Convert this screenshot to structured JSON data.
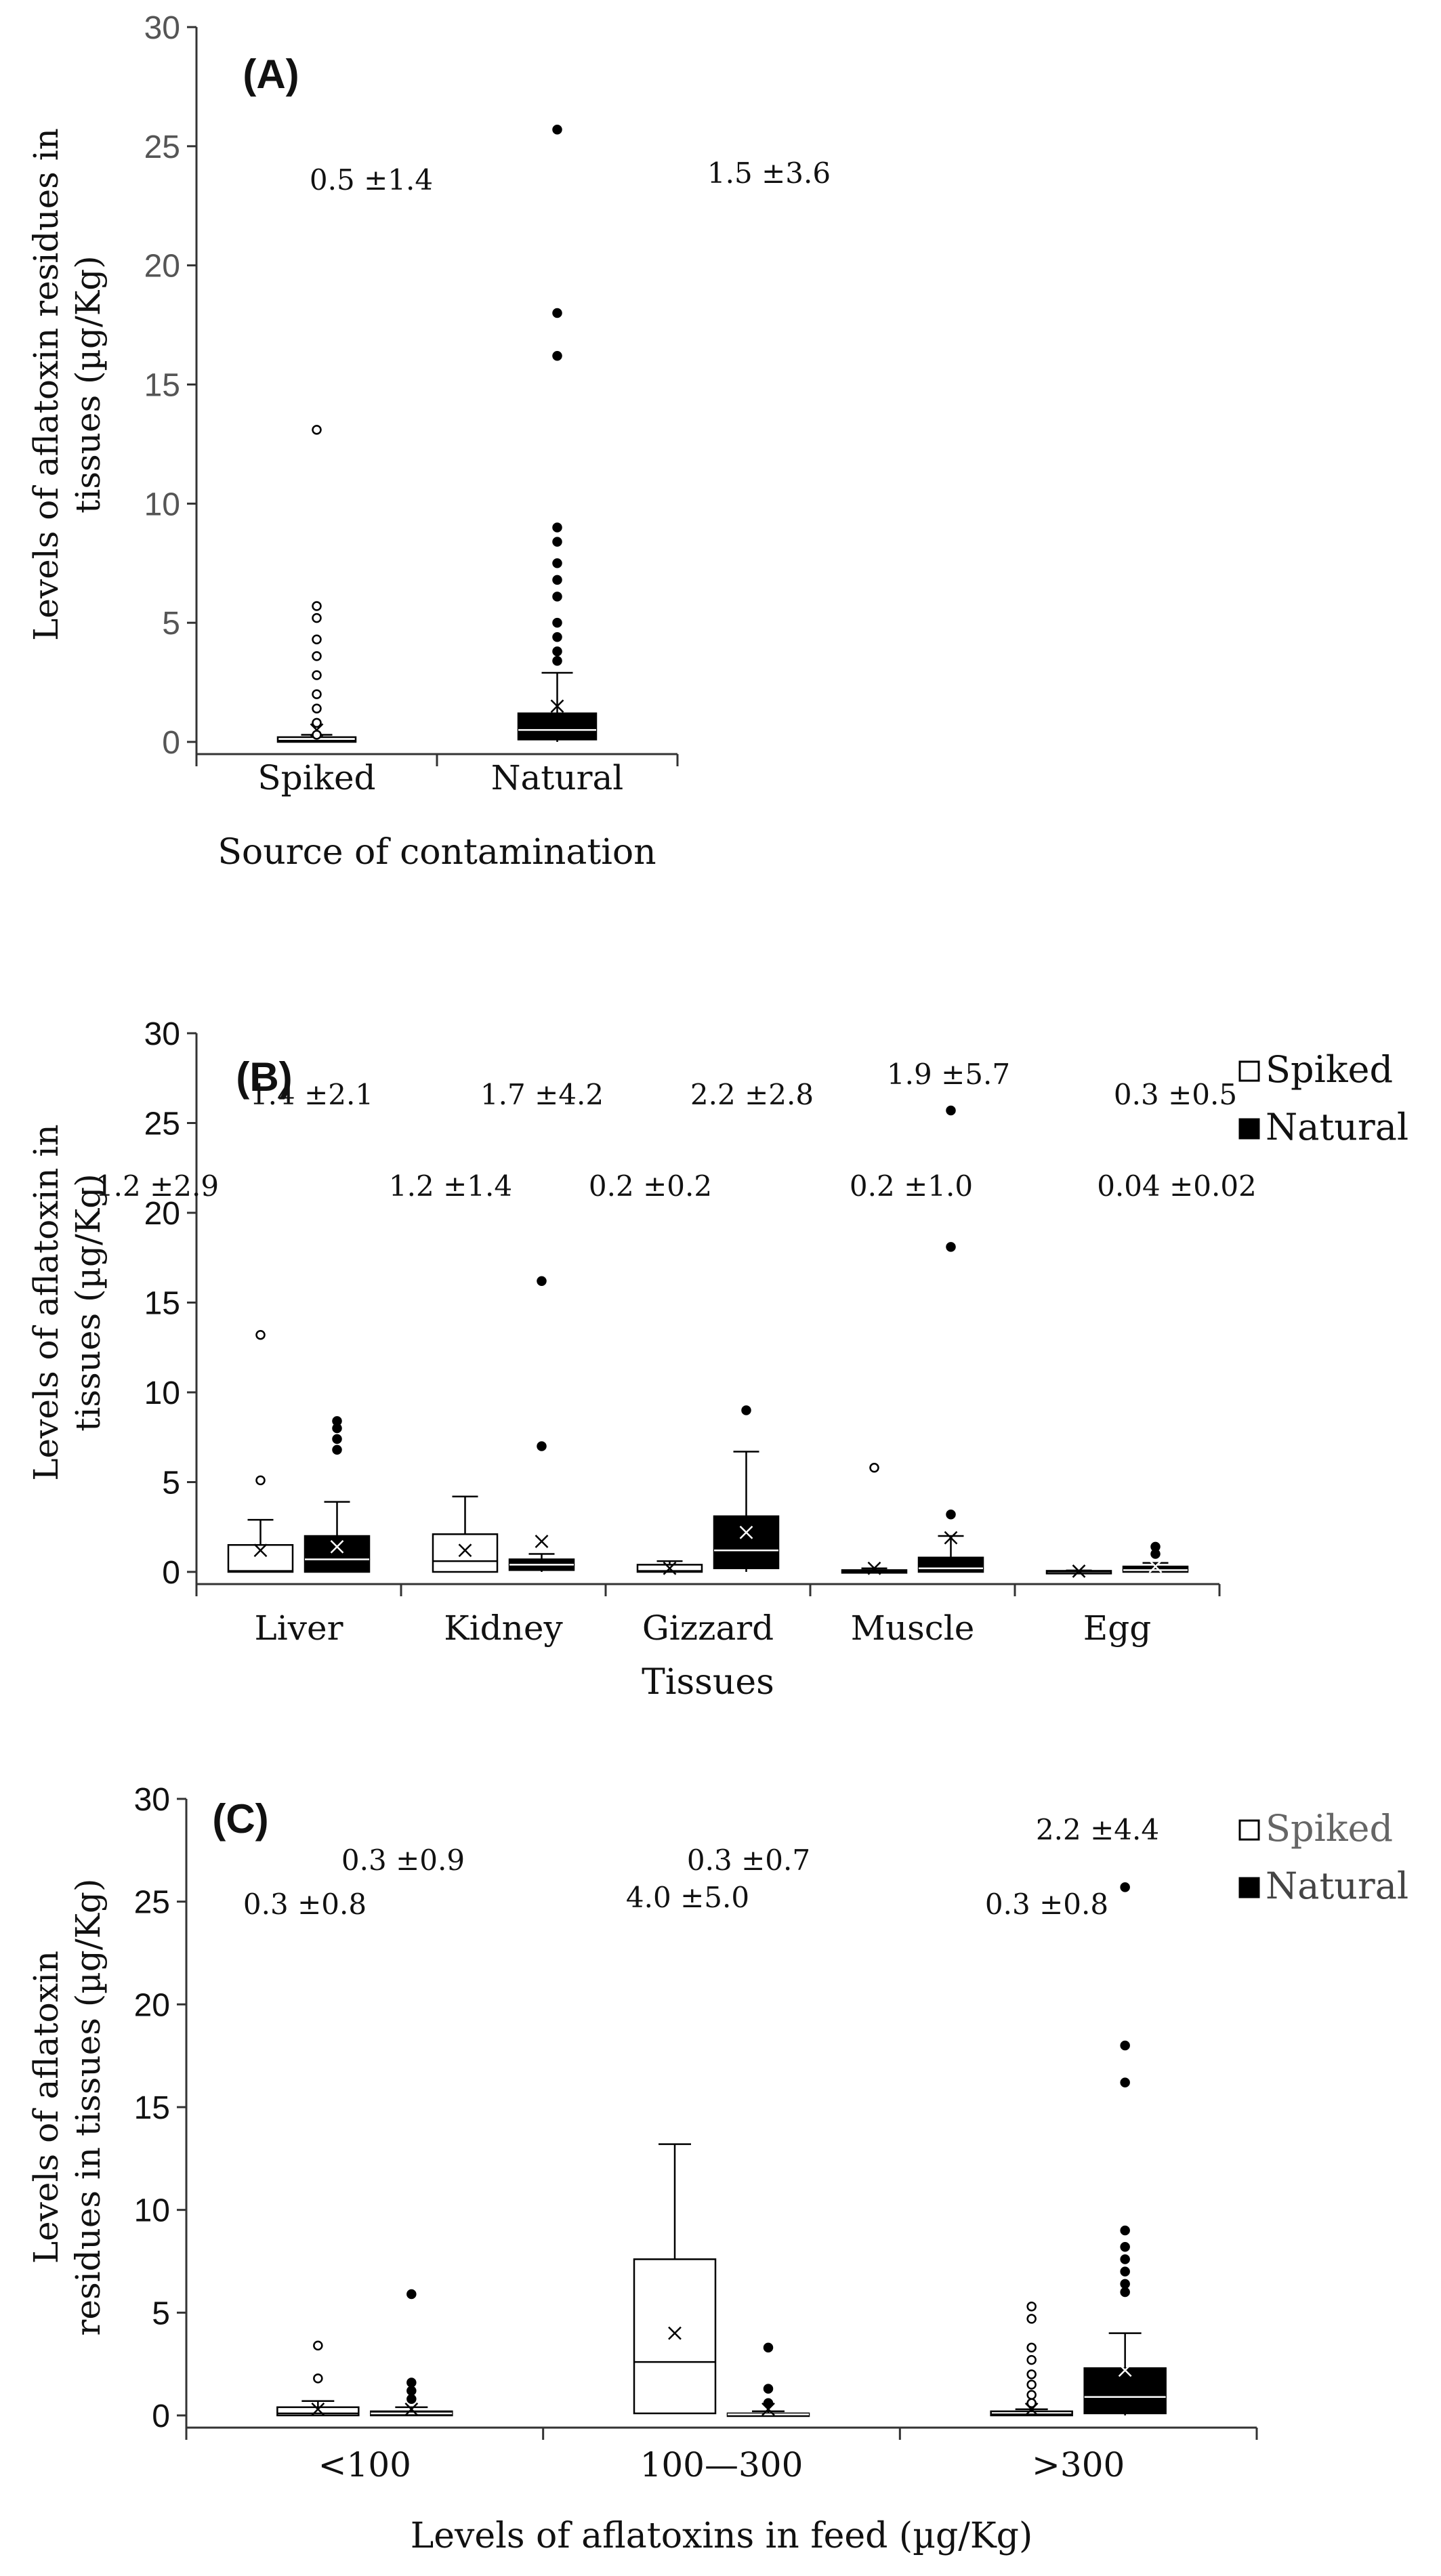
{
  "chart_data": [
    {
      "id": "A",
      "type": "box",
      "panel_label": "(A)",
      "ylabel_lines": [
        "Levels of aflatoxin residues in",
        "tissues (µg/Kg)"
      ],
      "xlabel": "Source of contamination",
      "ylim": [
        0,
        30
      ],
      "yticks": [
        0,
        5,
        10,
        15,
        20,
        25,
        30
      ],
      "categories": [
        "Spiked",
        "Natural"
      ],
      "legend": [],
      "series": [
        {
          "name": "Spiked",
          "fill": "#ffffff",
          "boxes": [
            {
              "category": "Spiked",
              "q1": 0.0,
              "median": 0.05,
              "q3": 0.2,
              "whisker_low": 0,
              "whisker_high": 0.3,
              "mean": 0.5,
              "outliers": [
                0.3,
                0.8,
                1.4,
                2.0,
                2.8,
                3.6,
                4.3,
                5.2,
                5.7,
                13.1
              ],
              "annotation": "0.5 ±1.4"
            }
          ]
        },
        {
          "name": "Natural",
          "fill": "#000000",
          "boxes": [
            {
              "category": "Natural",
              "q1": 0.1,
              "median": 0.5,
              "q3": 1.2,
              "whisker_low": 0,
              "whisker_high": 2.9,
              "mean": 1.5,
              "outliers": [
                3.4,
                3.8,
                4.4,
                5.0,
                6.1,
                6.8,
                7.5,
                8.4,
                9.0,
                16.2,
                18.0,
                25.7
              ],
              "annotation": "1.5 ±3.6"
            }
          ]
        }
      ]
    },
    {
      "id": "B",
      "type": "box",
      "panel_label": "(B)",
      "ylabel_lines": [
        "Levels of aflatoxin in",
        "tissues (µg/Kg)"
      ],
      "xlabel": "Tissues",
      "ylim": [
        0,
        30
      ],
      "yticks": [
        0,
        5,
        10,
        15,
        20,
        25,
        30
      ],
      "categories": [
        "Liver",
        "Kidney",
        "Gizzard",
        "Muscle",
        "Egg"
      ],
      "legend": [
        "Spiked",
        "Natural"
      ],
      "series": [
        {
          "name": "Spiked",
          "fill": "#ffffff",
          "boxes": [
            {
              "category": "Liver",
              "q1": 0.0,
              "median": 0.05,
              "q3": 1.5,
              "whisker_low": 0,
              "whisker_high": 2.9,
              "mean": 1.2,
              "outliers": [
                5.1,
                13.2
              ],
              "annotation": "1.2 ±2.9"
            },
            {
              "category": "Kidney",
              "q1": 0.0,
              "median": 0.6,
              "q3": 2.1,
              "whisker_low": 0,
              "whisker_high": 4.2,
              "mean": 1.2,
              "outliers": [],
              "annotation": "1.2 ±1.4"
            },
            {
              "category": "Gizzard",
              "q1": 0.0,
              "median": 0.05,
              "q3": 0.4,
              "whisker_low": 0,
              "whisker_high": 0.6,
              "mean": 0.2,
              "outliers": [],
              "annotation": "0.2 ±0.2"
            },
            {
              "category": "Muscle",
              "q1": 0.0,
              "median": 0.02,
              "q3": 0.1,
              "whisker_low": 0,
              "whisker_high": 0.2,
              "mean": 0.2,
              "outliers": [
                5.8
              ],
              "annotation": "0.2 ±1.0"
            },
            {
              "category": "Egg",
              "q1": 0.0,
              "median": 0.02,
              "q3": 0.06,
              "whisker_low": 0,
              "whisker_high": 0.08,
              "mean": 0.04,
              "outliers": [],
              "annotation": "0.04 ±0.02"
            }
          ]
        },
        {
          "name": "Natural",
          "fill": "#000000",
          "boxes": [
            {
              "category": "Liver",
              "q1": 0.0,
              "median": 0.7,
              "q3": 2.0,
              "whisker_low": 0,
              "whisker_high": 3.9,
              "mean": 1.4,
              "outliers": [
                6.8,
                7.4,
                8.0,
                8.4
              ],
              "annotation": "1.4 ±2.1"
            },
            {
              "category": "Kidney",
              "q1": 0.1,
              "median": 0.4,
              "q3": 0.7,
              "whisker_low": 0,
              "whisker_high": 1.0,
              "mean": 1.7,
              "outliers": [
                7.0,
                16.2
              ],
              "annotation": "1.7 ±4.2"
            },
            {
              "category": "Gizzard",
              "q1": 0.2,
              "median": 1.2,
              "q3": 3.1,
              "whisker_low": 0,
              "whisker_high": 6.7,
              "mean": 2.2,
              "outliers": [
                9.0
              ],
              "annotation": "2.2 ±2.8"
            },
            {
              "category": "Muscle",
              "q1": 0.0,
              "median": 0.2,
              "q3": 0.8,
              "whisker_low": 0,
              "whisker_high": 2.0,
              "mean": 1.9,
              "outliers": [
                3.2,
                18.1,
                25.7
              ],
              "annotation": "1.9 ±5.7"
            },
            {
              "category": "Egg",
              "q1": 0.0,
              "median": 0.1,
              "q3": 0.3,
              "whisker_low": 0,
              "whisker_high": 0.5,
              "mean": 0.3,
              "outliers": [
                1.0,
                1.4
              ],
              "annotation": "0.3 ±0.5"
            }
          ]
        }
      ]
    },
    {
      "id": "C",
      "type": "box",
      "panel_label": "(C)",
      "ylabel_lines": [
        "Levels of aflatoxin",
        "residues in tissues (µg/Kg)"
      ],
      "xlabel": "Levels of aflatoxins in feed (µg/Kg)",
      "ylim": [
        0,
        30
      ],
      "yticks": [
        0,
        5,
        10,
        15,
        20,
        25,
        30
      ],
      "categories": [
        "<100",
        "100—300",
        ">300"
      ],
      "legend": [
        "Spiked",
        "Natural"
      ],
      "series": [
        {
          "name": "Spiked",
          "fill": "#ffffff",
          "boxes": [
            {
              "category": "<100",
              "q1": 0.0,
              "median": 0.1,
              "q3": 0.4,
              "whisker_low": 0,
              "whisker_high": 0.7,
              "mean": 0.3,
              "outliers": [
                1.8,
                3.4
              ],
              "annotation": "0.3 ±0.8"
            },
            {
              "category": "100—300",
              "q1": 0.1,
              "median": 2.6,
              "q3": 7.6,
              "whisker_low": 0.1,
              "whisker_high": 13.2,
              "mean": 4.0,
              "outliers": [],
              "annotation": "4.0 ±5.0"
            },
            {
              "category": ">300",
              "q1": 0.0,
              "median": 0.05,
              "q3": 0.2,
              "whisker_low": 0,
              "whisker_high": 0.3,
              "mean": 0.3,
              "outliers": [
                0.6,
                1.0,
                1.5,
                2.0,
                2.7,
                3.3,
                4.7,
                5.3
              ],
              "annotation": "0.3 ±0.8"
            }
          ]
        },
        {
          "name": "Natural",
          "fill": "#000000",
          "boxes": [
            {
              "category": "<100",
              "q1": 0.0,
              "median": 0.1,
              "q3": 0.2,
              "whisker_low": 0,
              "whisker_high": 0.4,
              "mean": 0.3,
              "outliers": [
                0.8,
                1.2,
                1.6,
                5.9
              ],
              "annotation": "0.3 ±0.9"
            },
            {
              "category": "100—300",
              "q1": 0.0,
              "median": 0.05,
              "q3": 0.1,
              "whisker_low": 0,
              "whisker_high": 0.2,
              "mean": 0.3,
              "outliers": [
                0.6,
                1.3,
                3.3
              ],
              "annotation": "0.3 ±0.7"
            },
            {
              "category": ">300",
              "q1": 0.1,
              "median": 0.9,
              "q3": 2.3,
              "whisker_low": 0,
              "whisker_high": 4.0,
              "mean": 2.2,
              "outliers": [
                6.0,
                6.4,
                7.0,
                7.6,
                8.2,
                9.0,
                16.2,
                18.0,
                25.7
              ],
              "annotation": "2.2 ±4.4"
            }
          ]
        }
      ]
    }
  ]
}
